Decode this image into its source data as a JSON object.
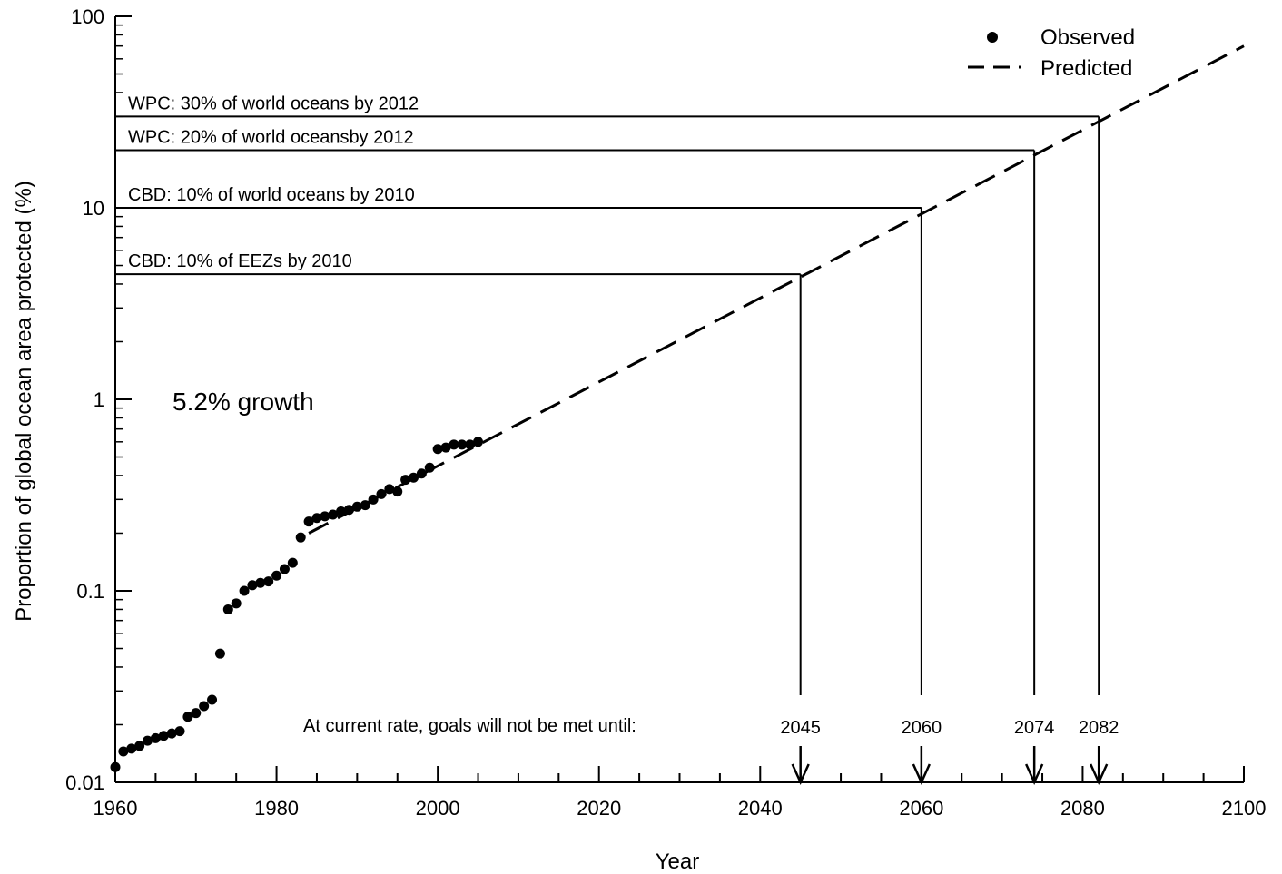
{
  "chart_data": {
    "type": "scatter",
    "xlabel": "Year",
    "ylabel": "Proportion of global ocean area protected (%)",
    "y_scale": "log",
    "xlim": [
      1960,
      2100
    ],
    "ylim": [
      0.01,
      100
    ],
    "x_ticks": [
      "1960",
      "1980",
      "2000",
      "2020",
      "2040",
      "2060",
      "2080",
      "2100"
    ],
    "y_ticks": [
      "0.01",
      "0.1",
      "1",
      "10",
      "100"
    ],
    "grid": false,
    "legend": {
      "position": "top-right",
      "entries": [
        {
          "label": "Observed",
          "marker": "dot"
        },
        {
          "label": "Predicted",
          "marker": "dashed-line"
        }
      ]
    },
    "series": [
      {
        "name": "Observed",
        "x": [
          1960,
          1961,
          1962,
          1963,
          1964,
          1965,
          1966,
          1967,
          1968,
          1969,
          1970,
          1971,
          1972,
          1973,
          1974,
          1975,
          1976,
          1977,
          1978,
          1979,
          1980,
          1981,
          1982,
          1983,
          1984,
          1985,
          1986,
          1987,
          1988,
          1989,
          1990,
          1991,
          1992,
          1993,
          1994,
          1995,
          1996,
          1997,
          1998,
          1999,
          2000,
          2001,
          2002,
          2003,
          2004,
          2005
        ],
        "y": [
          0.012,
          0.0145,
          0.015,
          0.0155,
          0.0165,
          0.017,
          0.0175,
          0.018,
          0.0185,
          0.022,
          0.023,
          0.025,
          0.027,
          0.047,
          0.08,
          0.086,
          0.1,
          0.107,
          0.11,
          0.112,
          0.12,
          0.13,
          0.14,
          0.19,
          0.23,
          0.24,
          0.245,
          0.25,
          0.26,
          0.265,
          0.275,
          0.28,
          0.3,
          0.32,
          0.34,
          0.33,
          0.38,
          0.39,
          0.41,
          0.44,
          0.55,
          0.56,
          0.58,
          0.58,
          0.58,
          0.6
        ]
      },
      {
        "name": "Predicted",
        "x": [
          1984,
          2100
        ],
        "y": [
          0.2,
          70
        ]
      }
    ],
    "goals": [
      {
        "label": "WPC: 30% of world oceans by 2012",
        "level": 30,
        "year_met": "2082"
      },
      {
        "label": "WPC: 20% of world oceansby 2012",
        "level": 20,
        "year_met": "2074"
      },
      {
        "label": "CBD: 10% of world oceans by 2010",
        "level": 10,
        "year_met": "2060"
      },
      {
        "label": "CBD: 10% of EEZs by 2010",
        "level": 4.5,
        "year_met": "2045"
      }
    ],
    "annotations": {
      "growth": "5.2% growth",
      "current_rate": "At current rate, goals will not be met until:"
    }
  }
}
